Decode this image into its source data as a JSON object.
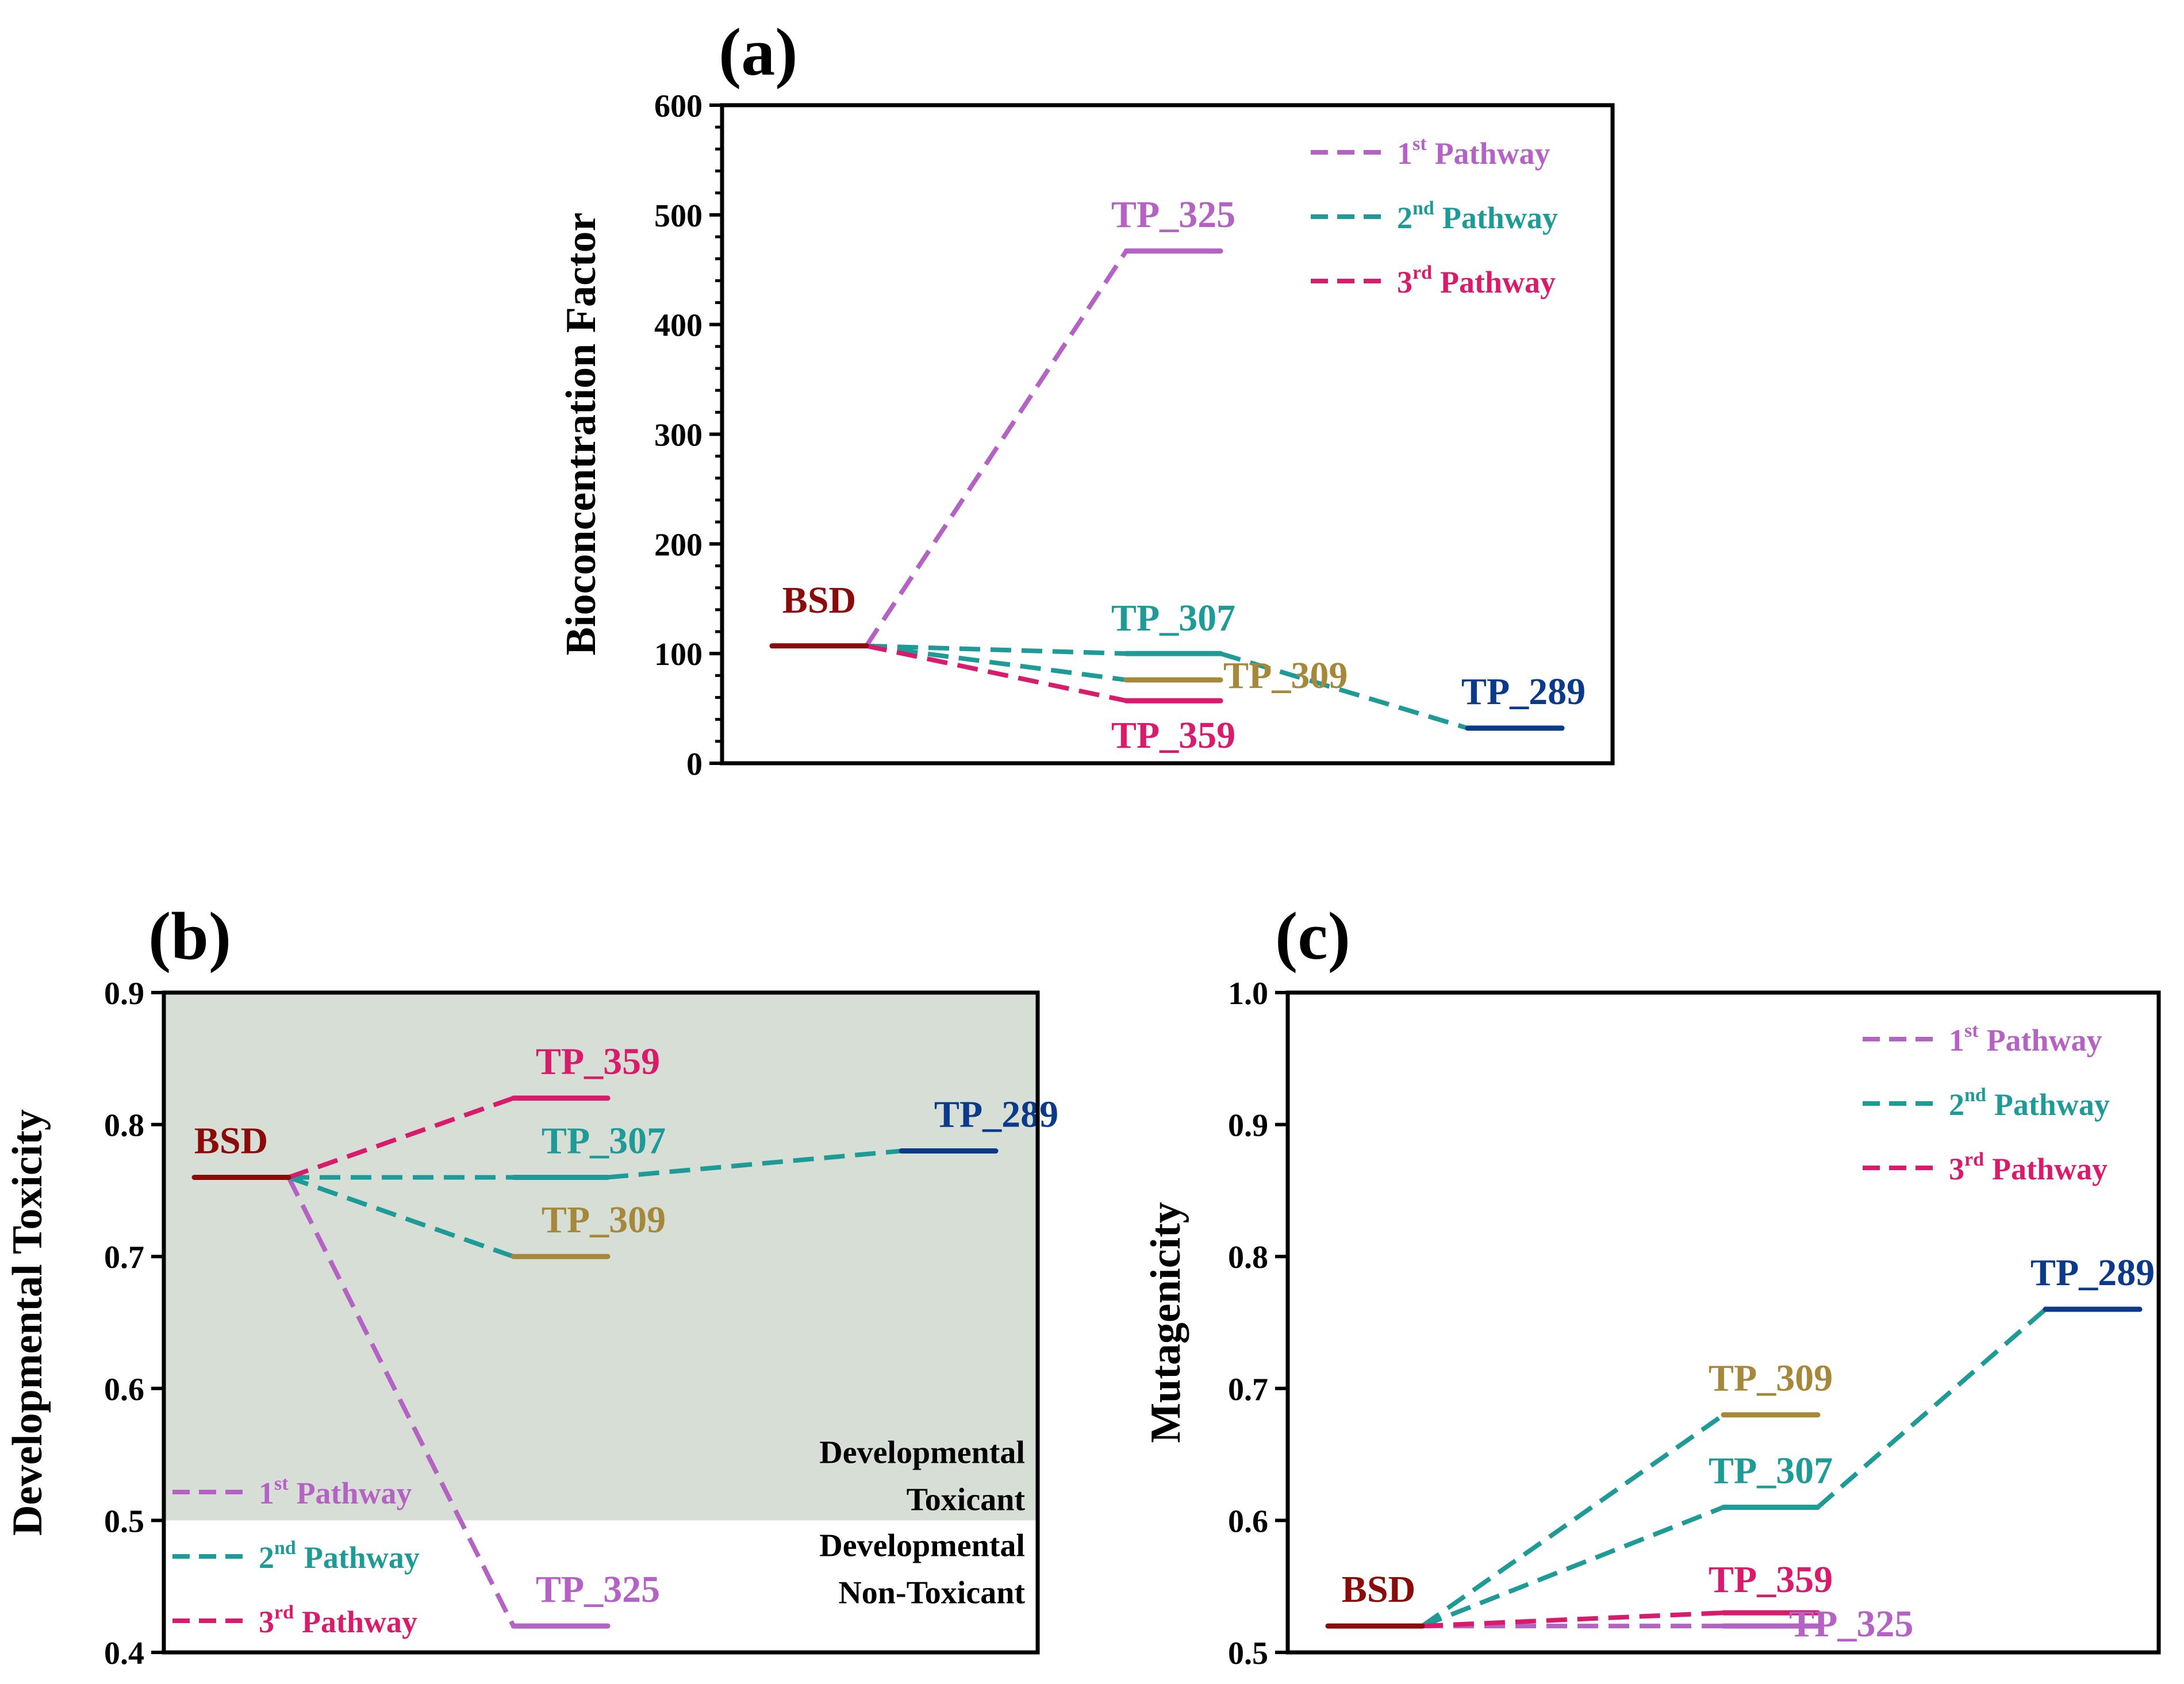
{
  "colors": {
    "pathway1": "#B462C3",
    "pathway2": "#1E9B96",
    "pathway3": "#D81B6A",
    "BSD": "#8B0A0A",
    "TP_325": "#B462C3",
    "TP_307": "#1E9B96",
    "TP_309": "#A6883A",
    "TP_359": "#D81B6A",
    "TP_289": "#0B3A8A",
    "toxicant_region": "#D6DED6"
  },
  "legend": [
    {
      "num": "1",
      "sup": "st",
      "text": "Pathway",
      "color_key": "pathway1"
    },
    {
      "num": "2",
      "sup": "nd",
      "text": "Pathway",
      "color_key": "pathway2"
    },
    {
      "num": "3",
      "sup": "rd",
      "text": "Pathway",
      "color_key": "pathway3"
    }
  ],
  "chart_data": [
    {
      "panel": "(a)",
      "type": "line",
      "ylabel": "Bioconcentration Factor",
      "ylim": [
        0,
        600
      ],
      "yticks": [
        "0",
        "100",
        "200",
        "300",
        "400",
        "500",
        "600"
      ],
      "legend_position": "top-right",
      "levels": [
        {
          "label": "BSD",
          "x": 0,
          "y": 107
        },
        {
          "label": "TP_325",
          "x": 1,
          "y": 467
        },
        {
          "label": "TP_307",
          "x": 1,
          "y": 100
        },
        {
          "label": "TP_309",
          "x": 1,
          "y": 76
        },
        {
          "label": "TP_359",
          "x": 1,
          "y": 57
        },
        {
          "label": "TP_289",
          "x": 2,
          "y": 32
        }
      ],
      "pathways": [
        {
          "pathway": 1,
          "from": "BSD",
          "to": "TP_325"
        },
        {
          "pathway": 2,
          "from": "BSD",
          "to": "TP_307"
        },
        {
          "pathway": 2,
          "from": "BSD",
          "to": "TP_309"
        },
        {
          "pathway": 2,
          "from": "TP_307",
          "to": "TP_289"
        },
        {
          "pathway": 3,
          "from": "BSD",
          "to": "TP_359"
        }
      ]
    },
    {
      "panel": "(b)",
      "type": "line",
      "ylabel": "Developmental Toxicity",
      "ylim": [
        0.4,
        0.9
      ],
      "yticks": [
        "0.4",
        "0.5",
        "0.6",
        "0.7",
        "0.8",
        "0.9"
      ],
      "threshold": 0.5,
      "region_labels": {
        "above": [
          "Developmental",
          "Toxicant"
        ],
        "below": [
          "Developmental",
          "Non-Toxicant"
        ]
      },
      "legend_position": "bottom-left",
      "levels": [
        {
          "label": "BSD",
          "x": 0,
          "y": 0.76
        },
        {
          "label": "TP_359",
          "x": 1,
          "y": 0.82
        },
        {
          "label": "TP_307",
          "x": 1,
          "y": 0.76
        },
        {
          "label": "TP_309",
          "x": 1,
          "y": 0.7
        },
        {
          "label": "TP_325",
          "x": 1,
          "y": 0.42
        },
        {
          "label": "TP_289",
          "x": 2,
          "y": 0.78
        }
      ],
      "pathways": [
        {
          "pathway": 1,
          "from": "BSD",
          "to": "TP_325"
        },
        {
          "pathway": 2,
          "from": "BSD",
          "to": "TP_307"
        },
        {
          "pathway": 2,
          "from": "BSD",
          "to": "TP_309"
        },
        {
          "pathway": 2,
          "from": "TP_307",
          "to": "TP_289"
        },
        {
          "pathway": 3,
          "from": "BSD",
          "to": "TP_359"
        }
      ]
    },
    {
      "panel": "(c)",
      "type": "line",
      "ylabel": "Mutagenicity",
      "ylim": [
        0.5,
        1.0
      ],
      "yticks": [
        "0.5",
        "0.6",
        "0.7",
        "0.8",
        "0.9",
        "1.0"
      ],
      "legend_position": "top-right",
      "levels": [
        {
          "label": "BSD",
          "x": 0,
          "y": 0.52
        },
        {
          "label": "TP_309",
          "x": 1,
          "y": 0.68
        },
        {
          "label": "TP_307",
          "x": 1,
          "y": 0.61
        },
        {
          "label": "TP_359",
          "x": 1,
          "y": 0.53
        },
        {
          "label": "TP_325",
          "x": 1,
          "y": 0.52
        },
        {
          "label": "TP_289",
          "x": 2,
          "y": 0.76
        }
      ],
      "pathways": [
        {
          "pathway": 1,
          "from": "BSD",
          "to": "TP_325"
        },
        {
          "pathway": 2,
          "from": "BSD",
          "to": "TP_307"
        },
        {
          "pathway": 2,
          "from": "BSD",
          "to": "TP_309"
        },
        {
          "pathway": 2,
          "from": "TP_307",
          "to": "TP_289"
        },
        {
          "pathway": 3,
          "from": "BSD",
          "to": "TP_359"
        }
      ]
    }
  ]
}
